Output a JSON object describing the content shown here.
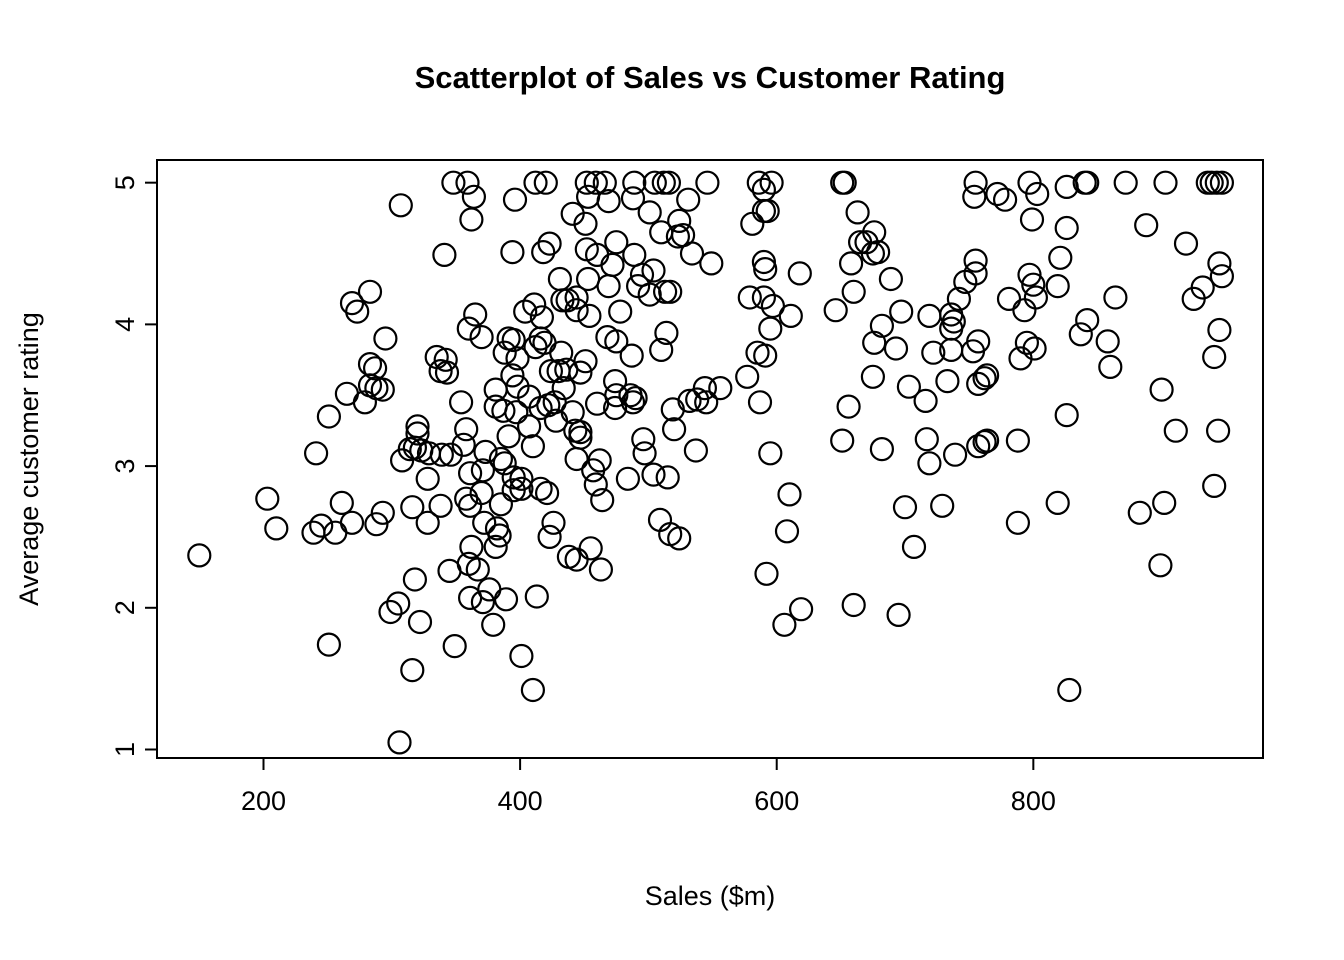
{
  "page": {
    "background": "#ffffff"
  },
  "chart_data": {
    "type": "scatter",
    "title": "Scatterplot of Sales vs Customer Rating",
    "xlabel": "Sales ($m)",
    "ylabel": "Average customer rating",
    "x_ticks": [
      200,
      400,
      600,
      800
    ],
    "y_ticks": [
      1,
      2,
      3,
      4,
      5
    ],
    "xlim": [
      117,
      979
    ],
    "ylim": [
      0.94,
      5.16
    ],
    "grid": false,
    "legend": "none",
    "marker": {
      "shape": "open-circle",
      "radius_px": 11,
      "stroke_px": 2.2,
      "color": "#000000"
    },
    "points": [
      [
        307,
        4.84
      ],
      [
        283,
        4.23
      ],
      [
        269,
        4.15
      ],
      [
        273,
        4.09
      ],
      [
        295,
        3.9
      ],
      [
        348,
        5.0
      ],
      [
        359,
        5.0
      ],
      [
        412,
        5.0
      ],
      [
        420,
        5.0
      ],
      [
        452,
        5.0
      ],
      [
        459,
        5.0
      ],
      [
        466,
        5.0
      ],
      [
        489,
        5.0
      ],
      [
        505,
        5.0
      ],
      [
        512,
        5.0
      ],
      [
        516,
        5.0
      ],
      [
        546,
        5.0
      ],
      [
        364,
        4.9
      ],
      [
        396,
        4.88
      ],
      [
        453,
        4.9
      ],
      [
        469,
        4.87
      ],
      [
        488,
        4.89
      ],
      [
        531,
        4.88
      ],
      [
        501,
        4.79
      ],
      [
        441,
        4.78
      ],
      [
        362,
        4.74
      ],
      [
        451,
        4.71
      ],
      [
        524,
        4.73
      ],
      [
        510,
        4.65
      ],
      [
        523,
        4.62
      ],
      [
        527,
        4.63
      ],
      [
        341,
        4.49
      ],
      [
        394,
        4.51
      ],
      [
        423,
        4.57
      ],
      [
        418,
        4.51
      ],
      [
        475,
        4.58
      ],
      [
        452,
        4.53
      ],
      [
        460,
        4.49
      ],
      [
        489,
        4.49
      ],
      [
        534,
        4.5
      ],
      [
        549,
        4.43
      ],
      [
        472,
        4.42
      ],
      [
        504,
        4.38
      ],
      [
        495,
        4.35
      ],
      [
        453,
        4.32
      ],
      [
        431,
        4.32
      ],
      [
        469,
        4.27
      ],
      [
        492,
        4.27
      ],
      [
        501,
        4.21
      ],
      [
        513,
        4.23
      ],
      [
        517,
        4.23
      ],
      [
        433,
        4.17
      ],
      [
        437,
        4.17
      ],
      [
        444,
        4.19
      ],
      [
        411,
        4.14
      ],
      [
        404,
        4.09
      ],
      [
        417,
        4.05
      ],
      [
        444,
        4.1
      ],
      [
        454,
        4.06
      ],
      [
        478,
        4.09
      ],
      [
        365,
        4.07
      ],
      [
        360,
        3.97
      ],
      [
        370,
        3.91
      ],
      [
        391,
        3.9
      ],
      [
        395,
        3.89
      ],
      [
        416,
        3.9
      ],
      [
        419,
        3.87
      ],
      [
        412,
        3.84
      ],
      [
        432,
        3.8
      ],
      [
        468,
        3.91
      ],
      [
        475,
        3.88
      ],
      [
        487,
        3.78
      ],
      [
        510,
        3.82
      ],
      [
        514,
        3.94
      ],
      [
        586,
        5.0
      ],
      [
        596,
        5.0
      ],
      [
        590,
        4.95
      ],
      [
        651,
        5.0
      ],
      [
        653,
        5.0
      ],
      [
        755,
        5.0
      ],
      [
        754,
        4.9
      ],
      [
        590,
        4.8
      ],
      [
        593,
        4.8
      ],
      [
        581,
        4.71
      ],
      [
        663,
        4.79
      ],
      [
        676,
        4.65
      ],
      [
        665,
        4.58
      ],
      [
        670,
        4.58
      ],
      [
        675,
        4.5
      ],
      [
        679,
        4.51
      ],
      [
        590,
        4.44
      ],
      [
        591,
        4.39
      ],
      [
        618,
        4.36
      ],
      [
        658,
        4.43
      ],
      [
        689,
        4.32
      ],
      [
        755,
        4.45
      ],
      [
        755,
        4.36
      ],
      [
        747,
        4.3
      ],
      [
        579,
        4.19
      ],
      [
        590,
        4.19
      ],
      [
        597,
        4.13
      ],
      [
        611,
        4.06
      ],
      [
        595,
        3.97
      ],
      [
        660,
        4.23
      ],
      [
        646,
        4.1
      ],
      [
        697,
        4.09
      ],
      [
        682,
        3.99
      ],
      [
        719,
        4.06
      ],
      [
        736,
        4.07
      ],
      [
        738,
        4.02
      ],
      [
        742,
        4.18
      ],
      [
        676,
        3.87
      ],
      [
        693,
        3.83
      ],
      [
        736,
        3.97
      ],
      [
        722,
        3.8
      ],
      [
        736,
        3.82
      ],
      [
        753,
        3.81
      ],
      [
        585,
        3.8
      ],
      [
        591,
        3.78
      ],
      [
        757,
        3.88
      ],
      [
        797,
        5.0
      ],
      [
        772,
        4.92
      ],
      [
        778,
        4.88
      ],
      [
        803,
        4.92
      ],
      [
        826,
        4.97
      ],
      [
        840,
        5.0
      ],
      [
        842,
        5.0
      ],
      [
        872,
        5.0
      ],
      [
        903,
        5.0
      ],
      [
        936,
        5.0
      ],
      [
        939,
        5.0
      ],
      [
        943,
        5.0
      ],
      [
        947,
        5.0
      ],
      [
        799,
        4.74
      ],
      [
        826,
        4.68
      ],
      [
        888,
        4.7
      ],
      [
        919,
        4.57
      ],
      [
        945,
        4.43
      ],
      [
        947,
        4.34
      ],
      [
        821,
        4.47
      ],
      [
        797,
        4.35
      ],
      [
        800,
        4.28
      ],
      [
        802,
        4.19
      ],
      [
        819,
        4.27
      ],
      [
        781,
        4.18
      ],
      [
        793,
        4.1
      ],
      [
        864,
        4.19
      ],
      [
        932,
        4.26
      ],
      [
        925,
        4.18
      ],
      [
        842,
        4.03
      ],
      [
        837,
        3.93
      ],
      [
        858,
        3.88
      ],
      [
        795,
        3.87
      ],
      [
        801,
        3.83
      ],
      [
        945,
        3.96
      ],
      [
        283,
        3.72
      ],
      [
        287,
        3.69
      ],
      [
        283,
        3.57
      ],
      [
        288,
        3.55
      ],
      [
        293,
        3.54
      ],
      [
        265,
        3.51
      ],
      [
        279,
        3.45
      ],
      [
        251,
        3.35
      ],
      [
        241,
        3.09
      ],
      [
        308,
        3.04
      ],
      [
        314,
        3.12
      ],
      [
        320,
        3.28
      ],
      [
        320,
        3.23
      ],
      [
        318,
        3.13
      ],
      [
        203,
        2.77
      ],
      [
        210,
        2.56
      ],
      [
        261,
        2.74
      ],
      [
        269,
        2.6
      ],
      [
        245,
        2.58
      ],
      [
        239,
        2.53
      ],
      [
        256,
        2.53
      ],
      [
        293,
        2.67
      ],
      [
        288,
        2.59
      ],
      [
        316,
        2.71
      ],
      [
        328,
        2.6
      ],
      [
        150,
        2.37
      ],
      [
        328,
        2.91
      ],
      [
        323,
        3.11
      ],
      [
        329,
        3.09
      ],
      [
        339,
        3.08
      ],
      [
        346,
        3.08
      ],
      [
        356,
        3.15
      ],
      [
        338,
        2.72
      ],
      [
        335,
        3.77
      ],
      [
        342,
        3.75
      ],
      [
        338,
        3.67
      ],
      [
        343,
        3.66
      ],
      [
        388,
        3.8
      ],
      [
        398,
        3.76
      ],
      [
        424,
        3.67
      ],
      [
        430,
        3.67
      ],
      [
        436,
        3.68
      ],
      [
        447,
        3.66
      ],
      [
        451,
        3.74
      ],
      [
        381,
        3.54
      ],
      [
        394,
        3.64
      ],
      [
        398,
        3.56
      ],
      [
        407,
        3.49
      ],
      [
        416,
        3.41
      ],
      [
        422,
        3.43
      ],
      [
        427,
        3.45
      ],
      [
        434,
        3.55
      ],
      [
        381,
        3.42
      ],
      [
        387,
        3.39
      ],
      [
        397,
        3.38
      ],
      [
        354,
        3.45
      ],
      [
        441,
        3.38
      ],
      [
        428,
        3.32
      ],
      [
        460,
        3.44
      ],
      [
        474,
        3.6
      ],
      [
        475,
        3.5
      ],
      [
        474,
        3.41
      ],
      [
        486,
        3.5
      ],
      [
        490,
        3.48
      ],
      [
        488,
        3.45
      ],
      [
        519,
        3.4
      ],
      [
        520,
        3.26
      ],
      [
        532,
        3.46
      ],
      [
        538,
        3.47
      ],
      [
        544,
        3.55
      ],
      [
        545,
        3.45
      ],
      [
        358,
        3.26
      ],
      [
        407,
        3.28
      ],
      [
        410,
        3.14
      ],
      [
        391,
        3.21
      ],
      [
        443,
        3.25
      ],
      [
        447,
        3.24
      ],
      [
        447,
        3.2
      ],
      [
        496,
        3.19
      ],
      [
        497,
        3.09
      ],
      [
        537,
        3.11
      ],
      [
        373,
        3.1
      ],
      [
        385,
        3.05
      ],
      [
        388,
        3.02
      ],
      [
        361,
        2.95
      ],
      [
        371,
        2.97
      ],
      [
        395,
        2.92
      ],
      [
        401,
        2.91
      ],
      [
        444,
        3.05
      ],
      [
        462,
        3.04
      ],
      [
        457,
        2.97
      ],
      [
        459,
        2.87
      ],
      [
        484,
        2.91
      ],
      [
        504,
        2.94
      ],
      [
        515,
        2.92
      ],
      [
        358,
        2.77
      ],
      [
        361,
        2.72
      ],
      [
        370,
        2.81
      ],
      [
        385,
        2.73
      ],
      [
        395,
        2.83
      ],
      [
        401,
        2.84
      ],
      [
        416,
        2.84
      ],
      [
        421,
        2.81
      ],
      [
        464,
        2.76
      ],
      [
        426,
        2.6
      ],
      [
        372,
        2.6
      ],
      [
        382,
        2.56
      ],
      [
        384,
        2.51
      ],
      [
        381,
        2.43
      ],
      [
        362,
        2.43
      ],
      [
        423,
        2.5
      ],
      [
        509,
        2.62
      ],
      [
        517,
        2.52
      ],
      [
        524,
        2.49
      ],
      [
        455,
        2.42
      ],
      [
        438,
        2.36
      ],
      [
        444,
        2.34
      ],
      [
        556,
        3.55
      ],
      [
        577,
        3.63
      ],
      [
        587,
        3.45
      ],
      [
        675,
        3.63
      ],
      [
        703,
        3.56
      ],
      [
        716,
        3.46
      ],
      [
        733,
        3.6
      ],
      [
        757,
        3.58
      ],
      [
        762,
        3.62
      ],
      [
        656,
        3.42
      ],
      [
        651,
        3.18
      ],
      [
        682,
        3.12
      ],
      [
        717,
        3.19
      ],
      [
        719,
        3.02
      ],
      [
        739,
        3.08
      ],
      [
        757,
        3.14
      ],
      [
        762,
        3.17
      ],
      [
        595,
        3.09
      ],
      [
        610,
        2.8
      ],
      [
        608,
        2.54
      ],
      [
        700,
        2.71
      ],
      [
        729,
        2.72
      ],
      [
        707,
        2.43
      ],
      [
        790,
        3.76
      ],
      [
        860,
        3.7
      ],
      [
        941,
        3.77
      ],
      [
        900,
        3.54
      ],
      [
        826,
        3.36
      ],
      [
        788,
        3.18
      ],
      [
        911,
        3.25
      ],
      [
        944,
        3.25
      ],
      [
        941,
        2.86
      ],
      [
        819,
        2.74
      ],
      [
        883,
        2.67
      ],
      [
        902,
        2.74
      ],
      [
        788,
        2.6
      ],
      [
        764,
        3.64
      ],
      [
        764,
        3.18
      ],
      [
        899,
        2.3
      ],
      [
        318,
        2.2
      ],
      [
        299,
        1.97
      ],
      [
        305,
        2.03
      ],
      [
        322,
        1.9
      ],
      [
        251,
        1.74
      ],
      [
        316,
        1.56
      ],
      [
        306,
        1.05
      ],
      [
        345,
        2.26
      ],
      [
        360,
        2.31
      ],
      [
        367,
        2.27
      ],
      [
        463,
        2.27
      ],
      [
        361,
        2.07
      ],
      [
        371,
        2.04
      ],
      [
        376,
        2.13
      ],
      [
        389,
        2.06
      ],
      [
        413,
        2.08
      ],
      [
        379,
        1.88
      ],
      [
        349,
        1.73
      ],
      [
        401,
        1.66
      ],
      [
        410,
        1.42
      ],
      [
        592,
        2.24
      ],
      [
        619,
        1.99
      ],
      [
        606,
        1.88
      ],
      [
        660,
        2.02
      ],
      [
        695,
        1.95
      ],
      [
        828,
        1.42
      ]
    ]
  }
}
